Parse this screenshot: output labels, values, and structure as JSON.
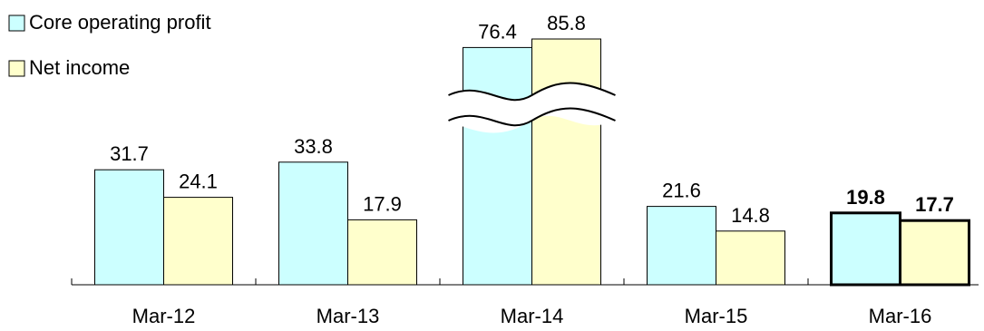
{
  "chart_data": {
    "type": "bar",
    "title": "",
    "xlabel": "",
    "ylabel": "",
    "categories": [
      "Mar-12",
      "Mar-13",
      "Mar-14",
      "Mar-15",
      "Mar-16"
    ],
    "series": [
      {
        "name": "Core operating profit",
        "color": "#CCFFFF",
        "values": [
          31.7,
          33.8,
          76.4,
          21.6,
          19.8
        ],
        "labels": [
          "31.7",
          "33.8",
          "76.4",
          "21.6",
          "19.8"
        ]
      },
      {
        "name": "Net income",
        "color": "#FFFFCC",
        "values": [
          24.1,
          17.9,
          85.8,
          14.8,
          17.7
        ],
        "labels": [
          "24.1",
          "17.9",
          "85.8",
          "14.8",
          "17.7"
        ]
      }
    ],
    "ylim": [
      0,
      40
    ],
    "axis_break": {
      "category": "Mar-14",
      "note": "Mar-14 bars are drawn with a scale break (wavy cut) and truncated height"
    },
    "highlight_category": "Mar-16",
    "legend_position": "top-left",
    "grid": false
  }
}
